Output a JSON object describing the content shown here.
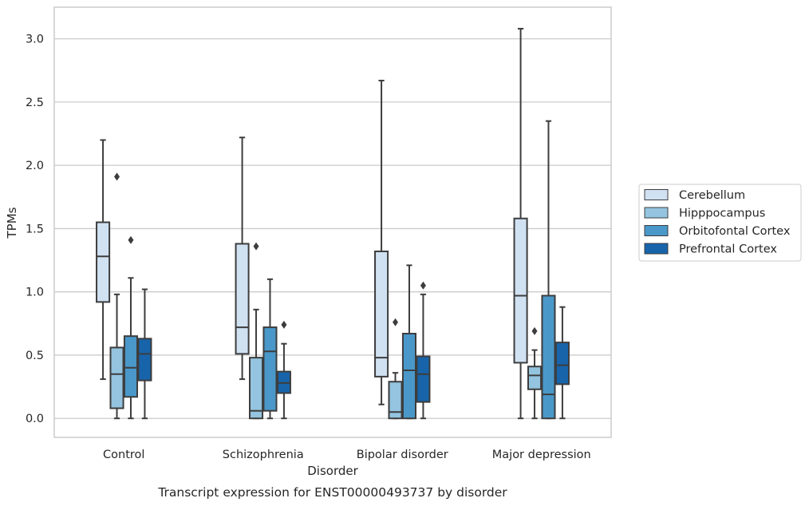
{
  "caption": "Transcript expression for ENST00000493737 by disorder",
  "chart_data": {
    "type": "box",
    "xlabel": "Disorder",
    "ylabel": "TPMs",
    "ylim": [
      -0.15,
      3.25
    ],
    "yticks": [
      0.0,
      0.5,
      1.0,
      1.5,
      2.0,
      2.5,
      3.0
    ],
    "ytick_labels": [
      "0.0",
      "0.5",
      "1.0",
      "1.5",
      "2.0",
      "2.5",
      "3.0"
    ],
    "grid": "horizontal",
    "legend_position": "right",
    "categories": [
      "Control",
      "Schizophrenia",
      "Bipolar disorder",
      "Major depression"
    ],
    "series": [
      {
        "name": "Cerebellum",
        "color": "#d0e1f2",
        "boxes": [
          {
            "whisker_low": 0.31,
            "q1": 0.92,
            "median": 1.28,
            "q3": 1.55,
            "whisker_high": 2.2,
            "outliers": []
          },
          {
            "whisker_low": 0.31,
            "q1": 0.51,
            "median": 0.72,
            "q3": 1.38,
            "whisker_high": 2.22,
            "outliers": []
          },
          {
            "whisker_low": 0.11,
            "q1": 0.33,
            "median": 0.48,
            "q3": 1.32,
            "whisker_high": 2.67,
            "outliers": []
          },
          {
            "whisker_low": 0.0,
            "q1": 0.44,
            "median": 0.97,
            "q3": 1.58,
            "whisker_high": 3.08,
            "outliers": []
          }
        ]
      },
      {
        "name": "Hipppocampus",
        "color": "#94c4df",
        "boxes": [
          {
            "whisker_low": 0.0,
            "q1": 0.08,
            "median": 0.35,
            "q3": 0.56,
            "whisker_high": 0.98,
            "outliers": [
              1.91
            ]
          },
          {
            "whisker_low": 0.0,
            "q1": 0.0,
            "median": 0.06,
            "q3": 0.48,
            "whisker_high": 0.86,
            "outliers": [
              1.36
            ]
          },
          {
            "whisker_low": 0.0,
            "q1": 0.0,
            "median": 0.05,
            "q3": 0.29,
            "whisker_high": 0.36,
            "outliers": [
              0.76
            ]
          },
          {
            "whisker_low": 0.0,
            "q1": 0.23,
            "median": 0.34,
            "q3": 0.41,
            "whisker_high": 0.54,
            "outliers": [
              0.69
            ]
          }
        ]
      },
      {
        "name": "Orbitofontal Cortex",
        "color": "#4a98c9",
        "boxes": [
          {
            "whisker_low": 0.0,
            "q1": 0.17,
            "median": 0.4,
            "q3": 0.65,
            "whisker_high": 1.11,
            "outliers": [
              1.41
            ]
          },
          {
            "whisker_low": 0.0,
            "q1": 0.06,
            "median": 0.53,
            "q3": 0.72,
            "whisker_high": 1.1,
            "outliers": []
          },
          {
            "whisker_low": 0.0,
            "q1": 0.0,
            "median": 0.38,
            "q3": 0.67,
            "whisker_high": 1.21,
            "outliers": []
          },
          {
            "whisker_low": 0.0,
            "q1": 0.0,
            "median": 0.19,
            "q3": 0.97,
            "whisker_high": 2.35,
            "outliers": []
          }
        ]
      },
      {
        "name": "Prefrontal Cortex",
        "color": "#1764ab",
        "boxes": [
          {
            "whisker_low": 0.0,
            "q1": 0.3,
            "median": 0.51,
            "q3": 0.63,
            "whisker_high": 1.02,
            "outliers": []
          },
          {
            "whisker_low": 0.0,
            "q1": 0.2,
            "median": 0.28,
            "q3": 0.37,
            "whisker_high": 0.59,
            "outliers": [
              0.74
            ]
          },
          {
            "whisker_low": 0.0,
            "q1": 0.13,
            "median": 0.35,
            "q3": 0.49,
            "whisker_high": 0.98,
            "outliers": [
              1.05
            ]
          },
          {
            "whisker_low": 0.0,
            "q1": 0.27,
            "median": 0.42,
            "q3": 0.6,
            "whisker_high": 0.88,
            "outliers": []
          }
        ]
      }
    ]
  }
}
